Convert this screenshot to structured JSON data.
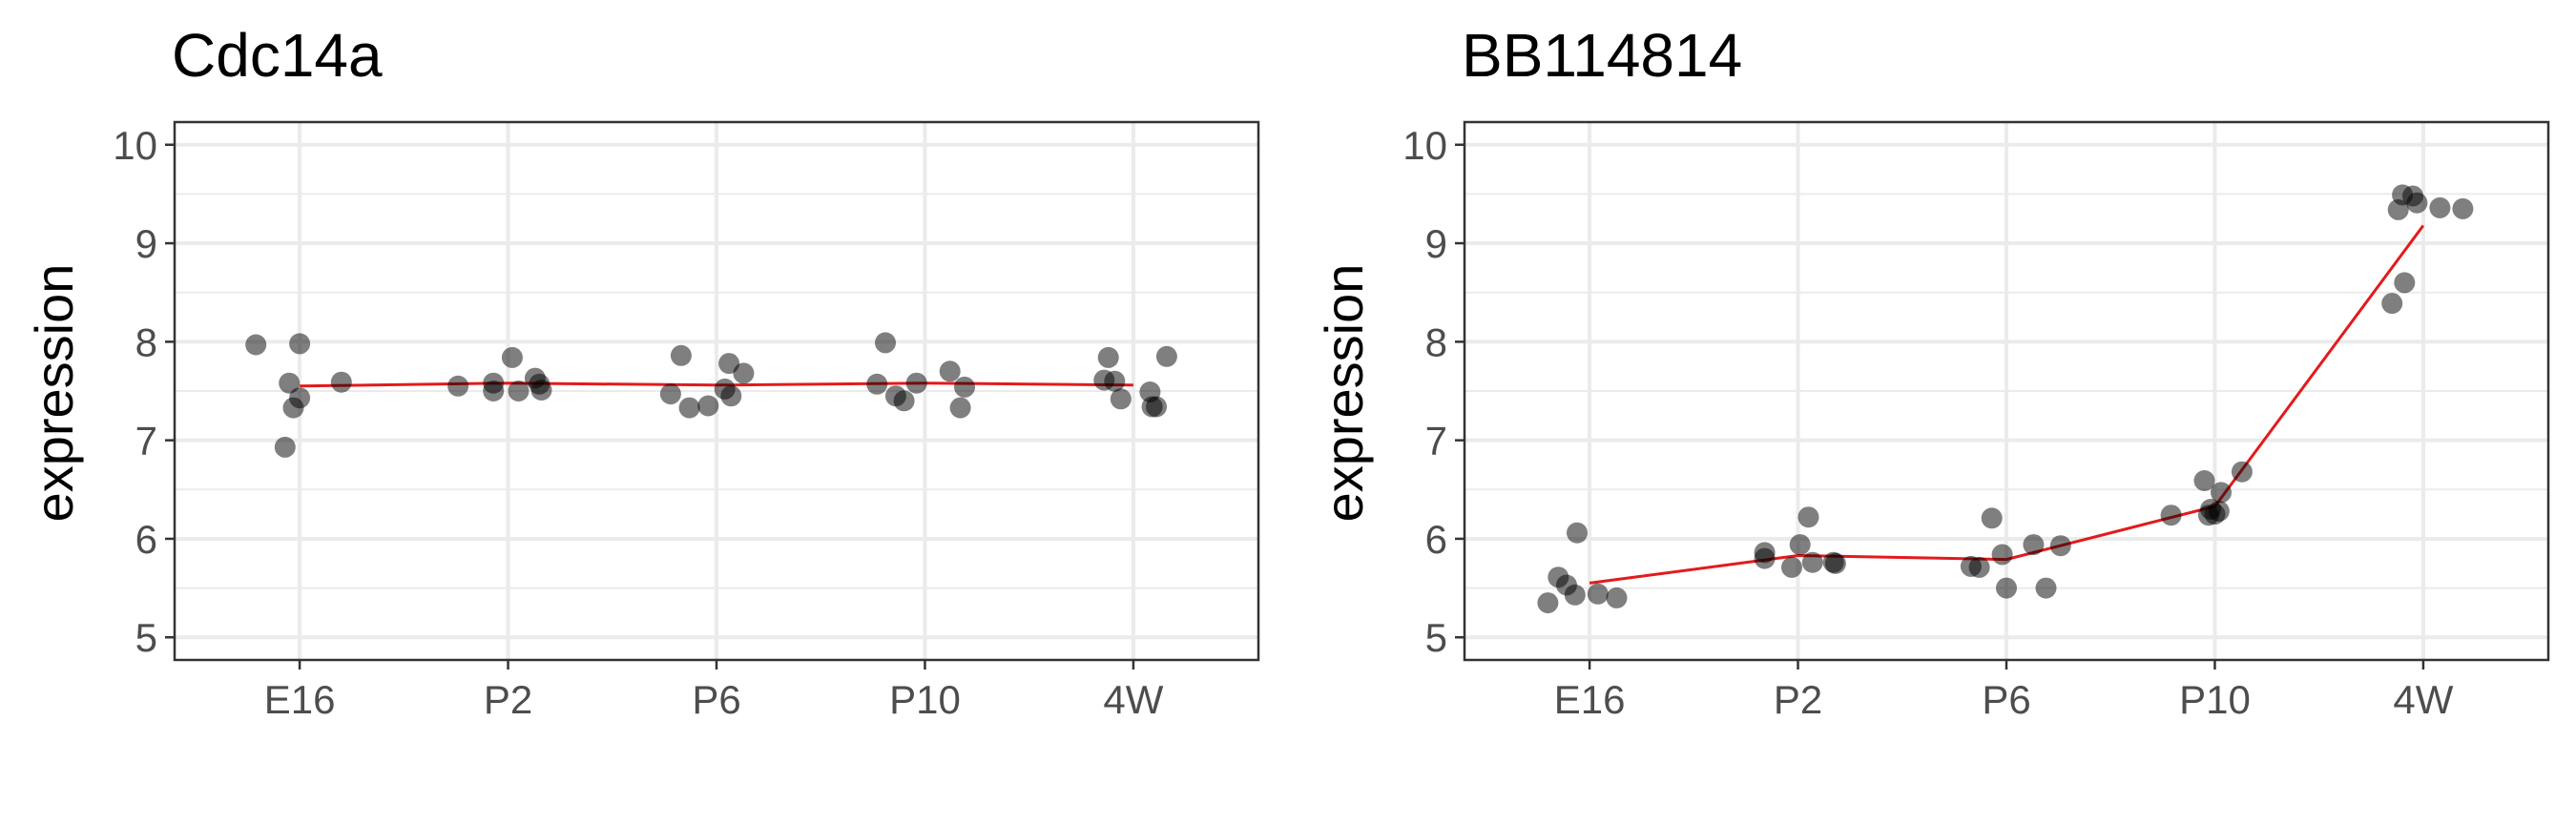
{
  "chart_data": [
    {
      "type": "scatter",
      "title": "Cdc14a",
      "xlabel": "",
      "ylabel": "expression",
      "categories": [
        "E16",
        "P2",
        "P6",
        "P10",
        "4W"
      ],
      "yticks": [
        5,
        6,
        7,
        8,
        9,
        10
      ],
      "ylim": [
        4.77,
        10.23
      ],
      "grid": true,
      "legend": "none",
      "point_color": "#000000",
      "line_color": "#e31a1c",
      "points": [
        {
          "x": 0.79,
          "y": 7.97
        },
        {
          "x": 1.0,
          "y": 7.98
        },
        {
          "x": 0.95,
          "y": 7.58
        },
        {
          "x": 0.97,
          "y": 7.33
        },
        {
          "x": 1.0,
          "y": 7.43
        },
        {
          "x": 1.2,
          "y": 7.59
        },
        {
          "x": 0.93,
          "y": 6.93
        },
        {
          "x": 1.76,
          "y": 7.55
        },
        {
          "x": 1.93,
          "y": 7.58
        },
        {
          "x": 1.93,
          "y": 7.5
        },
        {
          "x": 2.02,
          "y": 7.84
        },
        {
          "x": 2.05,
          "y": 7.5
        },
        {
          "x": 2.13,
          "y": 7.63
        },
        {
          "x": 2.15,
          "y": 7.57
        },
        {
          "x": 2.16,
          "y": 7.51
        },
        {
          "x": 2.78,
          "y": 7.47
        },
        {
          "x": 2.83,
          "y": 7.86
        },
        {
          "x": 2.87,
          "y": 7.33
        },
        {
          "x": 2.96,
          "y": 7.35
        },
        {
          "x": 3.04,
          "y": 7.52
        },
        {
          "x": 3.06,
          "y": 7.78
        },
        {
          "x": 3.07,
          "y": 7.45
        },
        {
          "x": 3.13,
          "y": 7.68
        },
        {
          "x": 3.77,
          "y": 7.57
        },
        {
          "x": 3.81,
          "y": 7.99
        },
        {
          "x": 3.86,
          "y": 7.45
        },
        {
          "x": 3.9,
          "y": 7.4
        },
        {
          "x": 3.96,
          "y": 7.58
        },
        {
          "x": 4.12,
          "y": 7.7
        },
        {
          "x": 4.17,
          "y": 7.33
        },
        {
          "x": 4.19,
          "y": 7.54
        },
        {
          "x": 4.86,
          "y": 7.61
        },
        {
          "x": 4.88,
          "y": 7.84
        },
        {
          "x": 4.91,
          "y": 7.6
        },
        {
          "x": 4.94,
          "y": 7.42
        },
        {
          "x": 5.08,
          "y": 7.49
        },
        {
          "x": 5.09,
          "y": 7.34
        },
        {
          "x": 5.11,
          "y": 7.34
        },
        {
          "x": 5.16,
          "y": 7.85
        }
      ],
      "trend": [
        {
          "x": 1,
          "y": 7.55
        },
        {
          "x": 2,
          "y": 7.58
        },
        {
          "x": 3,
          "y": 7.56
        },
        {
          "x": 4,
          "y": 7.58
        },
        {
          "x": 5,
          "y": 7.56
        }
      ]
    },
    {
      "type": "scatter",
      "title": "BB114814",
      "xlabel": "",
      "ylabel": "expression",
      "categories": [
        "E16",
        "P2",
        "P6",
        "P10",
        "4W"
      ],
      "yticks": [
        5,
        6,
        7,
        8,
        9,
        10
      ],
      "ylim": [
        4.77,
        10.23
      ],
      "grid": true,
      "legend": "none",
      "point_color": "#000000",
      "line_color": "#e31a1c",
      "points": [
        {
          "x": 0.8,
          "y": 5.35
        },
        {
          "x": 0.85,
          "y": 5.61
        },
        {
          "x": 0.89,
          "y": 5.53
        },
        {
          "x": 0.93,
          "y": 5.43
        },
        {
          "x": 0.94,
          "y": 6.06
        },
        {
          "x": 1.04,
          "y": 5.44
        },
        {
          "x": 1.13,
          "y": 5.4
        },
        {
          "x": 1.84,
          "y": 5.8
        },
        {
          "x": 1.84,
          "y": 5.86
        },
        {
          "x": 1.97,
          "y": 5.71
        },
        {
          "x": 2.01,
          "y": 5.94
        },
        {
          "x": 2.05,
          "y": 6.22
        },
        {
          "x": 2.07,
          "y": 5.76
        },
        {
          "x": 2.17,
          "y": 5.76
        },
        {
          "x": 2.18,
          "y": 5.75
        },
        {
          "x": 2.83,
          "y": 5.72
        },
        {
          "x": 2.87,
          "y": 5.71
        },
        {
          "x": 2.93,
          "y": 6.21
        },
        {
          "x": 2.98,
          "y": 5.84
        },
        {
          "x": 3.0,
          "y": 5.5
        },
        {
          "x": 3.13,
          "y": 5.94
        },
        {
          "x": 3.19,
          "y": 5.5
        },
        {
          "x": 3.26,
          "y": 5.93
        },
        {
          "x": 3.79,
          "y": 6.24
        },
        {
          "x": 3.95,
          "y": 6.59
        },
        {
          "x": 3.97,
          "y": 6.24
        },
        {
          "x": 3.98,
          "y": 6.3
        },
        {
          "x": 4.0,
          "y": 6.25
        },
        {
          "x": 4.02,
          "y": 6.28
        },
        {
          "x": 4.03,
          "y": 6.47
        },
        {
          "x": 4.13,
          "y": 6.68
        },
        {
          "x": 4.85,
          "y": 8.39
        },
        {
          "x": 4.88,
          "y": 9.34
        },
        {
          "x": 4.9,
          "y": 9.49
        },
        {
          "x": 4.91,
          "y": 8.6
        },
        {
          "x": 4.95,
          "y": 9.48
        },
        {
          "x": 4.97,
          "y": 9.41
        },
        {
          "x": 5.08,
          "y": 9.36
        },
        {
          "x": 5.19,
          "y": 9.35
        }
      ],
      "trend": [
        {
          "x": 1,
          "y": 5.55
        },
        {
          "x": 2,
          "y": 5.83
        },
        {
          "x": 3,
          "y": 5.79
        },
        {
          "x": 4,
          "y": 6.33
        },
        {
          "x": 5,
          "y": 9.18
        }
      ]
    }
  ]
}
